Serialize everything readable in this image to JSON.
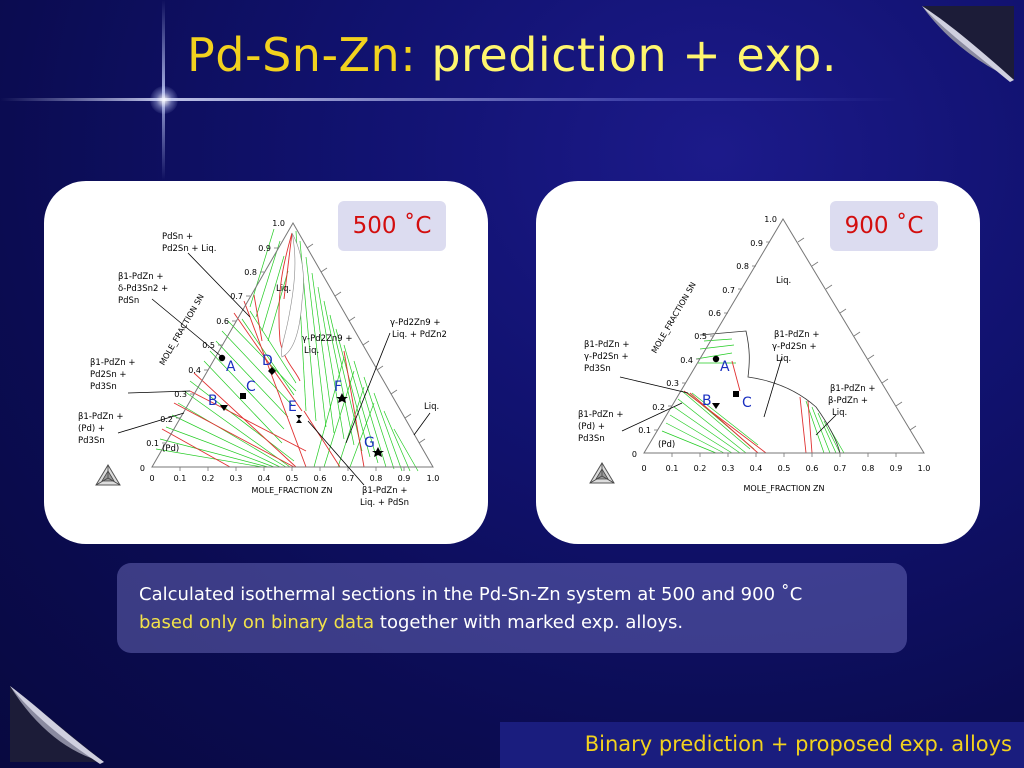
{
  "slide": {
    "title_prefix": "Pd-Sn-Zn:",
    "title_main": "prediction + exp.",
    "caption_line1": "Calculated isothermal sections in the Pd-Sn-Zn system at 500 and 900 ˚C",
    "caption_highlight": "based only on binary data",
    "caption_rest": "together with marked exp. alloys.",
    "footer": "Binary prediction + proposed exp. alloys"
  },
  "colors": {
    "title_prefix": "#f2d21e",
    "title_main": "#fff66e",
    "highlight": "#f2e24a",
    "temp": "#d30e0e",
    "tie_line": "#22cc22",
    "phase_boundary": "#e03030"
  },
  "left_diagram": {
    "temperature": "500 ˚C",
    "x_axis_label": "MOLE_FRACTION ZN",
    "y_axis_label": "MOLE_FRACTION SN",
    "x_ticks": [
      "0",
      "0.1",
      "0.2",
      "0.3",
      "0.4",
      "0.5",
      "0.6",
      "0.7",
      "0.8",
      "0.9",
      "1.0"
    ],
    "y_ticks": [
      "0",
      "0.1",
      "0.2",
      "0.3",
      "0.4",
      "0.5",
      "0.6",
      "0.7",
      "0.8",
      "0.9",
      "1.0"
    ],
    "regions": {
      "pdsn_a": "PdSn +",
      "pdsn_b": "Pd2Sn + Liq.",
      "b1_a": "β1-PdZn +",
      "b1_b": "δ-Pd3Sn2 +",
      "b1_c": "PdSn",
      "b2_a": "β1-PdZn +",
      "b2_b": "Pd2Sn +",
      "b2_c": "Pd3Sn",
      "b3_a": "β1-PdZn +",
      "b3_b": "(Pd) +",
      "b3_c": "Pd3Sn",
      "pd": "(Pd)",
      "liq1": "Liq.",
      "gamma_a": "γ-Pd2Zn9 +",
      "gamma_b": "Liq.",
      "gam2_a": "γ-Pd2Zn9 +",
      "gam2_b": "Liq. + PdZn2",
      "liq2": "Liq.",
      "b4_a": "β1-PdZn +",
      "b4_b": "Liq. + PdSn"
    },
    "alloys": [
      "A",
      "B",
      "C",
      "D",
      "E",
      "F",
      "G"
    ]
  },
  "right_diagram": {
    "temperature": "900 ˚C",
    "x_axis_label": "MOLE_FRACTION ZN",
    "y_axis_label": "MOLE_FRACTION SN",
    "x_ticks": [
      "0",
      "0.1",
      "0.2",
      "0.3",
      "0.4",
      "0.5",
      "0.6",
      "0.7",
      "0.8",
      "0.9",
      "1.0"
    ],
    "y_ticks": [
      "0",
      "0.1",
      "0.2",
      "0.3",
      "0.4",
      "0.5",
      "0.6",
      "0.7",
      "0.8",
      "0.9",
      "1.0"
    ],
    "regions": {
      "liq": "Liq.",
      "b1_a": "β1-PdZn +",
      "b1_b": "γ-Pd2Sn +",
      "b1_c": "Pd3Sn",
      "b2_a": "β1-PdZn +",
      "b2_b": "(Pd) +",
      "b2_c": "Pd3Sn",
      "pd": "(Pd)",
      "c_a": "β1-PdZn +",
      "c_b": "γ-Pd2Sn +",
      "c_c": "Liq.",
      "d_a": "β1-PdZn +",
      "d_b": "β-PdZn +",
      "d_c": "Liq."
    },
    "alloys": [
      "A",
      "B",
      "C"
    ]
  }
}
